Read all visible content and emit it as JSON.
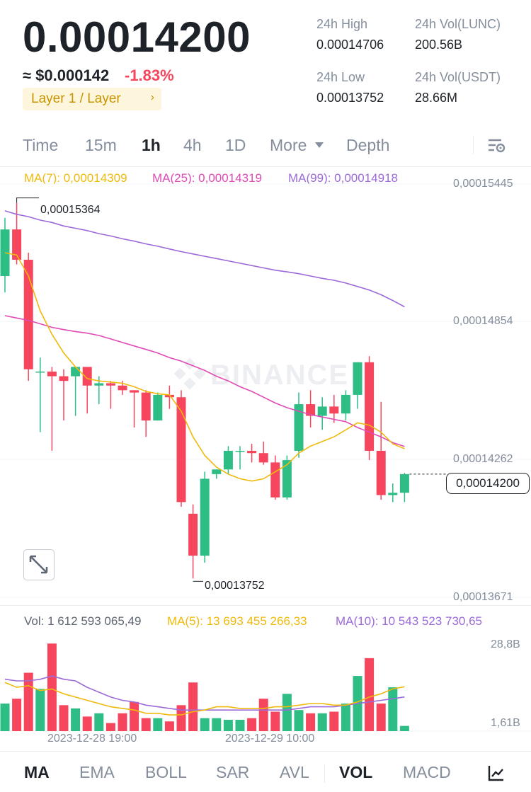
{
  "header": {
    "price": "0.00014200",
    "usd_price": "≈ $0.000142",
    "change": "-1.83%",
    "tag": "Layer 1 / Layer",
    "tag_chevron": "›",
    "stats": {
      "high_label": "24h High",
      "high_value": "0.00014706",
      "low_label": "24h Low",
      "low_value": "0.00013752",
      "vol_base_label": "24h Vol(LUNC)",
      "vol_base_value": "200.56B",
      "vol_quote_label": "24h Vol(USDT)",
      "vol_quote_value": "28.66M"
    }
  },
  "timeframes": {
    "time": "Time",
    "m15": "15m",
    "h1": "1h",
    "h4": "4h",
    "d1": "1D",
    "more": "More",
    "depth": "Depth",
    "settings_icon": "chart-settings-icon",
    "active": "1h"
  },
  "indicators": {
    "ma7": "MA(7): 0,00014309",
    "ma25": "MA(25): 0,00014319",
    "ma99": "MA(99): 0,00014918"
  },
  "price_axis": {
    "t1": "0,00015445",
    "t2": "0,00014854",
    "t3": "0,00014262",
    "t4": "0,00013671",
    "last": "0,00014200"
  },
  "annotations": {
    "high": "0,00015364",
    "low": "0,00013752"
  },
  "watermark": "BINANCE",
  "volume": {
    "vol": "Vol: 1 612 593 065,49",
    "ma5": "MA(5): 13 693 455 266,33",
    "ma10": "MA(10): 10 543 523 730,65",
    "axis_top": "28,8B",
    "axis_bottom": "1,61B"
  },
  "time_axis": {
    "t1": "2023-12-28 19:00",
    "t2": "2023-12-29 10:00"
  },
  "bottom_tabs": {
    "ma": "MA",
    "ema": "EMA",
    "boll": "BOLL",
    "sar": "SAR",
    "avl": "AVL",
    "vol": "VOL",
    "macd": "MACD",
    "more_icon": "indicator-chart-icon"
  },
  "colors": {
    "up": "#2ebd85",
    "down": "#f6465d",
    "ma7": "#f0b90b",
    "ma25": "#e04ab5",
    "ma99": "#9c6ad9",
    "tag_bg": "#fdf6dd",
    "tag_text": "#c99400"
  },
  "chart_data": {
    "type": "candlestick",
    "timeframe": "1h",
    "candles": [
      {
        "o": 0.0001505,
        "h": 0.000153,
        "l": 0.0001498,
        "c": 0.0001525
      },
      {
        "o": 0.0001525,
        "h": 0.00015364,
        "l": 0.000151,
        "c": 0.0001512
      },
      {
        "o": 0.0001512,
        "h": 0.0001515,
        "l": 0.000146,
        "c": 0.0001465
      },
      {
        "o": 0.0001464,
        "h": 0.000147,
        "l": 0.0001438,
        "c": 0.0001464
      },
      {
        "o": 0.0001464,
        "h": 0.0001466,
        "l": 0.000143,
        "c": 0.0001462
      },
      {
        "o": 0.0001462,
        "h": 0.0001465,
        "l": 0.0001443,
        "c": 0.000146
      },
      {
        "o": 0.0001462,
        "h": 0.0001466,
        "l": 0.0001445,
        "c": 0.0001466
      },
      {
        "o": 0.0001466,
        "h": 0.0001466,
        "l": 0.0001446,
        "c": 0.0001458
      },
      {
        "o": 0.0001458,
        "h": 0.0001462,
        "l": 0.000145,
        "c": 0.0001459
      },
      {
        "o": 0.0001459,
        "h": 0.000146,
        "l": 0.0001448,
        "c": 0.0001458
      },
      {
        "o": 0.0001458,
        "h": 0.000146,
        "l": 0.0001454,
        "c": 0.0001456
      },
      {
        "o": 0.0001456,
        "h": 0.0001456,
        "l": 0.000144,
        "c": 0.0001455
      },
      {
        "o": 0.0001455,
        "h": 0.0001456,
        "l": 0.0001436,
        "c": 0.0001443
      },
      {
        "o": 0.0001443,
        "h": 0.0001455,
        "l": 0.0001443,
        "c": 0.0001454
      },
      {
        "o": 0.0001454,
        "h": 0.0001458,
        "l": 0.0001448,
        "c": 0.0001453
      },
      {
        "o": 0.0001453,
        "h": 0.0001456,
        "l": 0.0001406,
        "c": 0.0001408
      },
      {
        "o": 0.0001403,
        "h": 0.0001407,
        "l": 0.00013752,
        "c": 0.0001385
      },
      {
        "o": 0.0001385,
        "h": 0.0001421,
        "l": 0.0001382,
        "c": 0.0001418
      },
      {
        "o": 0.000142,
        "h": 0.0001422,
        "l": 0.0001418,
        "c": 0.0001422
      },
      {
        "o": 0.0001422,
        "h": 0.0001432,
        "l": 0.000142,
        "c": 0.000143
      },
      {
        "o": 0.000143,
        "h": 0.0001432,
        "l": 0.0001422,
        "c": 0.000143
      },
      {
        "o": 0.000143,
        "h": 0.0001433,
        "l": 0.0001425,
        "c": 0.0001429
      },
      {
        "o": 0.0001429,
        "h": 0.0001434,
        "l": 0.0001424,
        "c": 0.0001425
      },
      {
        "o": 0.0001425,
        "h": 0.0001428,
        "l": 0.0001409,
        "c": 0.000141
      },
      {
        "o": 0.000141,
        "h": 0.0001428,
        "l": 0.0001409,
        "c": 0.0001426
      },
      {
        "o": 0.000143,
        "h": 0.0001455,
        "l": 0.0001427,
        "c": 0.000145
      },
      {
        "o": 0.000145,
        "h": 0.0001456,
        "l": 0.000144,
        "c": 0.0001445
      },
      {
        "o": 0.0001445,
        "h": 0.0001453,
        "l": 0.0001439,
        "c": 0.0001449
      },
      {
        "o": 0.0001449,
        "h": 0.0001454,
        "l": 0.0001442,
        "c": 0.0001446
      },
      {
        "o": 0.0001446,
        "h": 0.0001456,
        "l": 0.0001443,
        "c": 0.0001454
      },
      {
        "o": 0.0001454,
        "h": 0.0001468,
        "l": 0.0001448,
        "c": 0.0001468
      },
      {
        "o": 0.0001468,
        "h": 0.00014706,
        "l": 0.0001426,
        "c": 0.000143
      },
      {
        "o": 0.000143,
        "h": 0.0001451,
        "l": 0.0001409,
        "c": 0.0001411
      },
      {
        "o": 0.0001411,
        "h": 0.0001416,
        "l": 0.0001408,
        "c": 0.0001412
      },
      {
        "o": 0.0001412,
        "h": 0.00014205,
        "l": 0.0001408,
        "c": 0.000142
      }
    ],
    "ma7": [
      0.0001515,
      0.0001514,
      0.0001505,
      0.000149,
      0.000148,
      0.0001472,
      0.0001466,
      0.0001461,
      0.000146,
      0.00014595,
      0.0001459,
      0.00014575,
      0.00014555,
      0.00014545,
      0.0001454,
      0.0001447,
      0.0001436,
      0.0001428,
      0.0001423,
      0.000142,
      0.0001418,
      0.0001417,
      0.0001418,
      0.0001421,
      0.0001424,
      0.0001429,
      0.0001432,
      0.0001434,
      0.0001436,
      0.0001439,
      0.0001442,
      0.0001441,
      0.0001438,
      0.0001433,
      0.00014309
    ],
    "ma25": [
      0.0001488,
      0.0001487,
      0.0001486,
      0.00014845,
      0.0001483,
      0.0001482,
      0.00014812,
      0.00014805,
      0.00014795,
      0.0001478,
      0.00014765,
      0.0001475,
      0.00014735,
      0.0001472,
      0.000147,
      0.00014685,
      0.00014665,
      0.00014645,
      0.0001462,
      0.000146,
      0.00014575,
      0.00014555,
      0.0001453,
      0.00014505,
      0.00014485,
      0.0001447,
      0.00014455,
      0.00014445,
      0.00014435,
      0.00014425,
      0.000144,
      0.0001438,
      0.0001436,
      0.00014335,
      0.00014319
    ],
    "ma99": [
      0.0001533,
      0.00015315,
      0.00015305,
      0.0001529,
      0.0001528,
      0.00015265,
      0.00015255,
      0.00015245,
      0.00015232,
      0.00015222,
      0.0001521,
      0.000152,
      0.00015188,
      0.00015178,
      0.00015166,
      0.00015155,
      0.00015145,
      0.00015135,
      0.00015125,
      0.00015115,
      0.00015105,
      0.00015095,
      0.00015085,
      0.00015075,
      0.00015068,
      0.0001506,
      0.0001505,
      0.0001504,
      0.00015032,
      0.0001502,
      0.00015005,
      0.0001499,
      0.0001497,
      0.00014945,
      0.00014918
    ],
    "volumes": [
      8.5,
      10,
      18,
      13,
      27,
      8,
      7,
      4.5,
      5.5,
      2.5,
      5.5,
      9,
      4,
      4,
      3,
      8,
      15,
      4,
      4,
      3.5,
      3.5,
      4,
      10,
      6,
      11.5,
      6.5,
      5.5,
      5.5,
      6,
      8.5,
      17,
      22.5,
      8.5,
      13.5,
      1.61
    ],
    "vol_ma5": [
      15,
      13.5,
      14,
      12.5,
      13,
      11.5,
      10.5,
      9.5,
      8.5,
      7.5,
      7,
      6.5,
      5.5,
      5.5,
      5,
      5,
      6,
      6.5,
      7.5,
      7.5,
      7,
      7,
      7,
      7.5,
      7.5,
      8,
      8.5,
      8.5,
      8,
      8,
      9,
      10.5,
      11.5,
      13,
      13.69
    ],
    "vol_ma10": [
      16,
      15.5,
      15.5,
      16,
      17,
      16,
      15.5,
      13.5,
      12,
      10.5,
      9.5,
      9,
      8,
      7.5,
      7,
      6.5,
      6.5,
      6.5,
      6.5,
      6.5,
      6.5,
      6.5,
      6.5,
      6.5,
      6.5,
      7,
      7.5,
      7.5,
      7.5,
      8,
      8.5,
      9,
      9.5,
      10,
      10.54
    ],
    "price_ticks": [
      "0,00015445",
      "0,00014854",
      "0,00014262",
      "0,00013671"
    ],
    "volume_ticks": [
      "28,8B",
      "1,61B"
    ],
    "x_ticks": [
      "2023-12-28 19:00",
      "2023-12-29 10:00"
    ],
    "last_price": 0.000142,
    "high_marker": 0.00015364,
    "low_marker": 0.00013752,
    "grid": true
  }
}
